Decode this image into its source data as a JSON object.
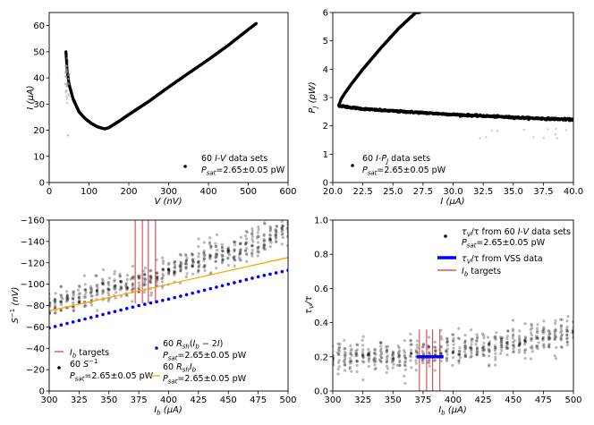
{
  "chart_data": [
    {
      "id": "iv",
      "type": "scatter",
      "xlabel": "V (nV)",
      "ylabel": "I (μA)",
      "xlim": [
        0,
        600
      ],
      "ylim": [
        0,
        65
      ],
      "xticks": [
        0,
        100,
        200,
        300,
        400,
        500,
        600
      ],
      "yticks": [
        0,
        10,
        20,
        30,
        40,
        50,
        60
      ],
      "legend": [
        {
          "line1": "60 I-V data sets",
          "line2": "Psat=2.65±0.05 pW"
        }
      ],
      "series": [
        {
          "name": "60 I-V data sets",
          "color": "#000000",
          "x": [
            42,
            45,
            50,
            60,
            75,
            90,
            105,
            120,
            132,
            140,
            150,
            175,
            200,
            250,
            300,
            350,
            400,
            450,
            500,
            520
          ],
          "y": [
            50,
            43,
            37.5,
            32,
            27,
            24.5,
            22.7,
            21.4,
            20.8,
            20.5,
            21,
            23.4,
            26,
            31,
            36.5,
            41.8,
            47,
            52.5,
            58.5,
            60.8
          ]
        }
      ]
    },
    {
      "id": "pi",
      "type": "scatter",
      "xlabel": "I (μA)",
      "ylabel": "Pj (pW)",
      "xlim": [
        20,
        40
      ],
      "ylim": [
        0,
        6
      ],
      "xticks": [
        20.0,
        22.5,
        25.0,
        27.5,
        30.0,
        32.5,
        35.0,
        37.5,
        40.0
      ],
      "yticks": [
        0,
        1,
        2,
        3,
        4,
        5,
        6
      ],
      "legend": [
        {
          "line1": "60 I-Pj data sets",
          "line2": "Psat=2.65±0.05 pW"
        }
      ],
      "series": [
        {
          "name": "60 I-Pj data sets",
          "color": "#000000",
          "x": [
            20.5,
            20.7,
            21.0,
            21.5,
            22.5,
            24.0,
            26.0,
            28.0,
            30.0,
            33.0,
            36.0,
            38.0,
            40.0
          ],
          "y": [
            2.72,
            2.7,
            2.68,
            2.65,
            2.6,
            2.55,
            2.5,
            2.45,
            2.4,
            2.34,
            2.28,
            2.25,
            2.22
          ]
        },
        {
          "name": "upper branch",
          "color": "#000000",
          "x": [
            20.5,
            20.7,
            21.0,
            21.5,
            22.5,
            24.0,
            25.5,
            26.9
          ],
          "y": [
            2.72,
            2.95,
            3.15,
            3.45,
            4.0,
            4.75,
            5.45,
            6.0
          ]
        }
      ]
    },
    {
      "id": "sinv",
      "type": "scatter",
      "xlabel": "Ib (μA)",
      "ylabel": "S−1 (nV)",
      "xlim": [
        300,
        500
      ],
      "ylim": [
        0,
        -160
      ],
      "xticks": [
        300,
        325,
        350,
        375,
        400,
        425,
        450,
        475,
        500
      ],
      "yticks": [
        0,
        -20,
        -40,
        -60,
        -80,
        -100,
        -120,
        -140,
        -160
      ],
      "ib_targets": [
        372,
        378,
        383,
        389
      ],
      "legend": [
        {
          "line1": "Ib targets",
          "line2": ""
        },
        {
          "line1": "60 S−1",
          "line2": "Psat=2.65±0.05 pW"
        },
        {
          "line1": "60 Rsh(Ib−2I)",
          "line2": "Psat=2.65±0.05 pW"
        },
        {
          "line1": "60 RshIb",
          "line2": "Psat=2.65±0.05 pW"
        }
      ],
      "series": [
        {
          "name": "60 S−1 (mean)",
          "color": "#000000",
          "x": [
            300,
            325,
            350,
            375,
            400,
            425,
            450,
            475,
            500
          ],
          "y": [
            -80,
            -88,
            -95,
            -102,
            -112,
            -122,
            -132,
            -140,
            -152
          ]
        },
        {
          "name": "60 Rsh(Ib−2I)",
          "color": "#0000ff",
          "x": [
            300,
            325,
            350,
            375,
            400,
            425,
            450,
            475,
            500
          ],
          "y": [
            -59,
            -66,
            -73,
            -80,
            -86,
            -93,
            -100,
            -107,
            -113
          ]
        },
        {
          "name": "60 RshIb",
          "color": "#ffa500",
          "x": [
            300,
            500
          ],
          "y": [
            -75,
            -125
          ]
        }
      ]
    },
    {
      "id": "tau",
      "type": "scatter",
      "xlabel": "Ib (μA)",
      "ylabel": "τV/τ",
      "xlim": [
        300,
        500
      ],
      "ylim": [
        0,
        1
      ],
      "xticks": [
        300,
        325,
        350,
        375,
        400,
        425,
        450,
        475,
        500
      ],
      "yticks": [
        0.0,
        0.2,
        0.4,
        0.6,
        0.8,
        1.0
      ],
      "ib_targets": [
        372,
        378,
        383,
        389
      ],
      "vss_segment": {
        "x": [
          370,
          392
        ],
        "y": 0.2
      },
      "legend": [
        {
          "line1": "τV/τ from 60 I-V data sets",
          "line2": "Psat=2.65±0.05 pW"
        },
        {
          "line1": "τV/τ from VSS data",
          "line2": ""
        },
        {
          "line1": "Ib targets",
          "line2": ""
        }
      ],
      "series": [
        {
          "name": "τV/τ from 60 I-V data sets (mean)",
          "color": "#000000",
          "x": [
            300,
            325,
            350,
            375,
            400,
            425,
            450,
            475,
            500
          ],
          "y": [
            0.2,
            0.2,
            0.21,
            0.22,
            0.24,
            0.26,
            0.28,
            0.31,
            0.35
          ]
        }
      ]
    }
  ]
}
